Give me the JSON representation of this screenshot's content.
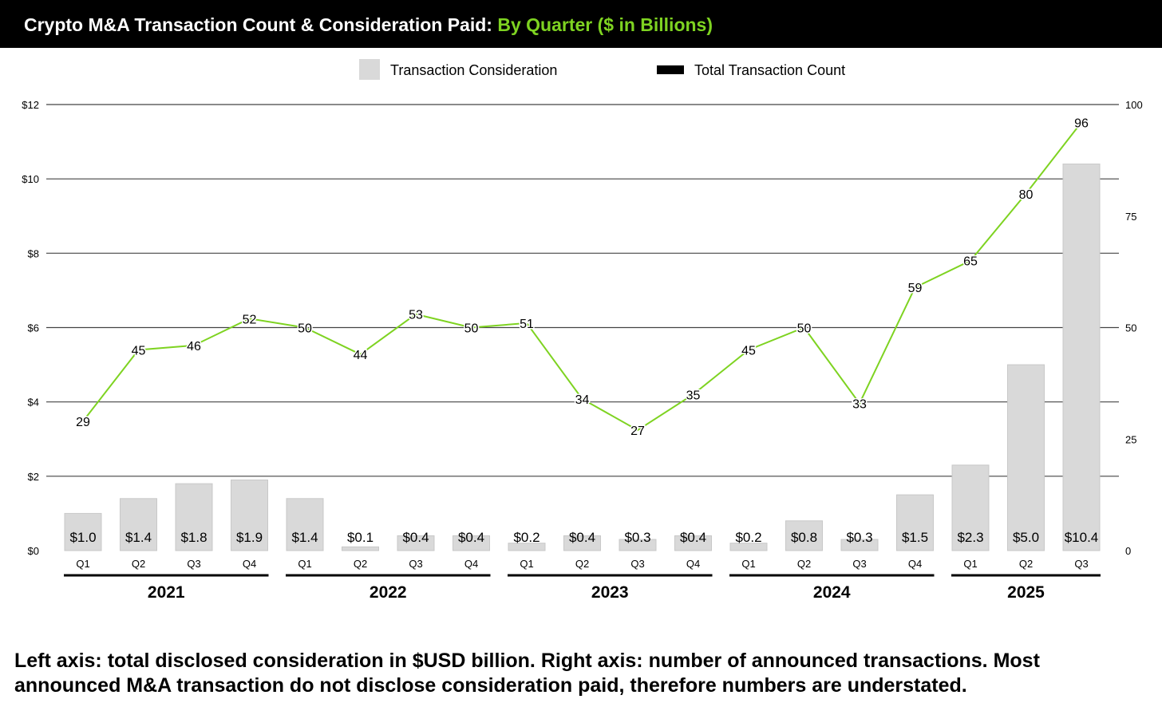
{
  "chart_data": {
    "type": "bar+line",
    "title": "Crypto M&A Transaction Count & Consideration Paid:",
    "subtitle": "By Quarter ($ in Billions)",
    "legend": {
      "placement": "top-center",
      "entries": [
        "Transaction Consideration",
        "Total Transaction Count"
      ]
    },
    "categories": [
      "Q1",
      "Q2",
      "Q3",
      "Q4",
      "Q1",
      "Q2",
      "Q3",
      "Q4",
      "Q1",
      "Q2",
      "Q3",
      "Q4",
      "Q1",
      "Q2",
      "Q3",
      "Q4",
      "Q1",
      "Q2",
      "Q3"
    ],
    "years": [
      {
        "label": "2021",
        "start": 0,
        "end": 3
      },
      {
        "label": "2022",
        "start": 4,
        "end": 7
      },
      {
        "label": "2023",
        "start": 8,
        "end": 11
      },
      {
        "label": "2024",
        "start": 12,
        "end": 15
      },
      {
        "label": "2025",
        "start": 16,
        "end": 18
      }
    ],
    "series": [
      {
        "name": "Transaction Consideration",
        "axis": "left",
        "type": "bar",
        "color": "#d9d9d9",
        "values": [
          1.0,
          1.4,
          1.8,
          1.9,
          1.4,
          0.1,
          0.4,
          0.4,
          0.2,
          0.4,
          0.3,
          0.4,
          0.2,
          0.8,
          0.3,
          1.5,
          2.3,
          5.0,
          10.4
        ],
        "labels": [
          "$1.0",
          "$1.4",
          "$1.8",
          "$1.9",
          "$1.4",
          "$0.1",
          "$0.4",
          "$0.4",
          "$0.2",
          "$0.4",
          "$0.3",
          "$0.4",
          "$0.2",
          "$0.8",
          "$0.3",
          "$1.5",
          "$2.3",
          "$5.0",
          "$10.4"
        ]
      },
      {
        "name": "Total Transaction Count",
        "axis": "right",
        "type": "line",
        "color": "#7ed321",
        "values": [
          29,
          45,
          46,
          52,
          50,
          44,
          53,
          50,
          51,
          34,
          27,
          35,
          45,
          50,
          33,
          59,
          65,
          80,
          96
        ]
      }
    ],
    "left_axis": {
      "ylim": [
        0,
        12
      ],
      "ticks": [
        0,
        2,
        4,
        6,
        8,
        10,
        12
      ],
      "tick_labels": [
        "$0",
        "$2",
        "$4",
        "$6",
        "$8",
        "$10",
        "$12"
      ]
    },
    "right_axis": {
      "ylim": [
        0,
        100
      ],
      "ticks": [
        0,
        25,
        50,
        75,
        100
      ],
      "tick_labels": [
        "0",
        "25",
        "50",
        "75",
        "100"
      ]
    },
    "grid": true,
    "footnote": "Left axis: total disclosed consideration in $USD billion. Right axis: number of announced transactions. Most announced M&A transaction do not disclose consideration paid, therefore numbers are understated."
  }
}
